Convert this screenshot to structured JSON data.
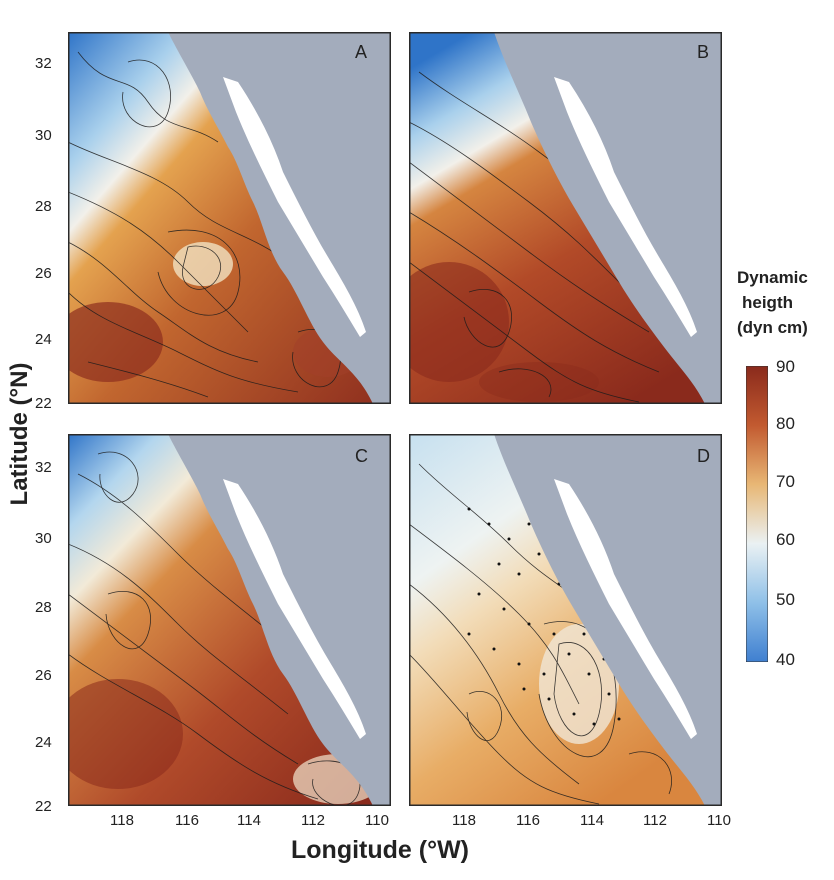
{
  "figure": {
    "y_axis_label": "Latitude (°N)",
    "x_axis_label": "Longitude (°W)",
    "lat_ticks": [
      "32",
      "30",
      "28",
      "26",
      "24",
      "22"
    ],
    "lon_ticks": [
      "118",
      "116",
      "114",
      "112",
      "110"
    ],
    "panels": [
      {
        "letter": "A"
      },
      {
        "letter": "B"
      },
      {
        "letter": "C"
      },
      {
        "letter": "D"
      }
    ]
  },
  "colorbar": {
    "title_line1": "Dynamic",
    "title_line2": "heigth",
    "title_line3": "(dyn cm)",
    "ticks": [
      "90",
      "80",
      "70",
      "60",
      "50",
      "40"
    ],
    "min": 40,
    "max": 90,
    "colors": [
      "#3f7fd0",
      "#8fc0e8",
      "#e8f0f2",
      "#e8b775",
      "#d07a3a",
      "#b04a2c",
      "#8a2a1c"
    ]
  },
  "colors": {
    "land": "#a3acbc",
    "gulf_island": "#ffffff",
    "frame": "#2a2a2a"
  }
}
